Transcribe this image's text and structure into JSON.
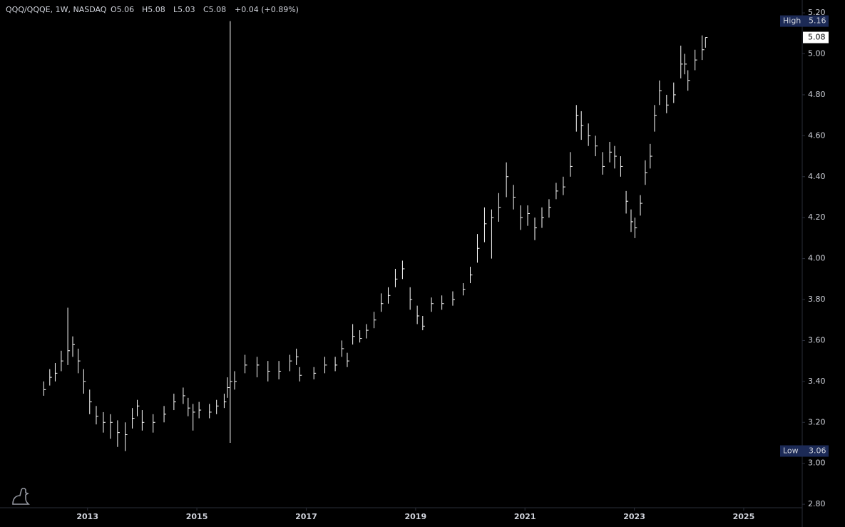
{
  "chart_data": {
    "type": "ohlc",
    "title": "QQQ/QQQE, 1W, NASDAQ",
    "legend": [
      "O5.06",
      "H5.08",
      "L5.03",
      "C5.08",
      "+0.04 (+0.89%)"
    ],
    "color": "#ffffff",
    "xlim": [
      2011.4,
      2026.07
    ],
    "xticks": [
      2013,
      2015,
      2017,
      2019,
      2021,
      2023,
      2025
    ],
    "ylim": [
      2.783,
      5.263
    ],
    "yticks": [
      {
        "value": 2.8,
        "label": "2.80"
      },
      {
        "value": 3.0,
        "label": "3.00"
      },
      {
        "value": 3.2,
        "label": "3.20"
      },
      {
        "value": 3.4,
        "label": "3.40"
      },
      {
        "value": 3.6,
        "label": "3.60"
      },
      {
        "value": 3.8,
        "label": "3.80"
      },
      {
        "value": 4.0,
        "label": "4.00"
      },
      {
        "value": 4.2,
        "label": "4.20"
      },
      {
        "value": 4.4,
        "label": "4.40"
      },
      {
        "value": 4.6,
        "label": "4.60"
      },
      {
        "value": 4.8,
        "label": "4.80"
      },
      {
        "value": 5.0,
        "label": "5.00"
      },
      {
        "value": 5.2,
        "label": "5.20"
      }
    ],
    "high_marker": {
      "label": "High",
      "value": 5.16
    },
    "low_marker": {
      "label": "Low",
      "value": 3.06
    },
    "last_price": 5.08,
    "x": [
      2012.2,
      2012.31,
      2012.41,
      2012.52,
      2012.64,
      2012.73,
      2012.83,
      2012.93,
      2013.04,
      2013.16,
      2013.29,
      2013.42,
      2013.55,
      2013.69,
      2013.82,
      2013.91,
      2014.0,
      2014.2,
      2014.4,
      2014.58,
      2014.75,
      2014.84,
      2014.93,
      2015.04,
      2015.23,
      2015.36,
      2015.5,
      2015.56,
      2015.61,
      2015.69,
      2015.88,
      2016.1,
      2016.3,
      2016.5,
      2016.7,
      2016.82,
      2016.88,
      2017.14,
      2017.34,
      2017.53,
      2017.65,
      2017.75,
      2017.85,
      2017.98,
      2018.1,
      2018.24,
      2018.37,
      2018.5,
      2018.63,
      2018.76,
      2018.9,
      2019.03,
      2019.13,
      2019.29,
      2019.48,
      2019.68,
      2019.87,
      2020.0,
      2020.13,
      2020.26,
      2020.39,
      2020.52,
      2020.66,
      2020.79,
      2020.92,
      2021.05,
      2021.18,
      2021.31,
      2021.44,
      2021.57,
      2021.7,
      2021.83,
      2021.94,
      2022.03,
      2022.16,
      2022.29,
      2022.42,
      2022.55,
      2022.64,
      2022.75,
      2022.85,
      2022.94,
      2023.01,
      2023.11,
      2023.2,
      2023.29,
      2023.37,
      2023.46,
      2023.59,
      2023.72,
      2023.85,
      2023.92,
      2023.98,
      2024.11,
      2024.24,
      2024.3
    ],
    "close": [
      3.36,
      3.42,
      3.44,
      3.5,
      3.55,
      3.58,
      3.5,
      3.4,
      3.3,
      3.23,
      3.2,
      3.2,
      3.15,
      3.14,
      3.22,
      3.28,
      3.2,
      3.2,
      3.24,
      3.3,
      3.33,
      3.27,
      3.25,
      3.26,
      3.25,
      3.28,
      3.3,
      3.37,
      3.4,
      3.4,
      3.48,
      3.48,
      3.45,
      3.45,
      3.5,
      3.52,
      3.43,
      3.44,
      3.48,
      3.48,
      3.56,
      3.5,
      3.62,
      3.61,
      3.65,
      3.7,
      3.78,
      3.82,
      3.9,
      3.95,
      3.8,
      3.72,
      3.67,
      3.78,
      3.78,
      3.8,
      3.85,
      3.92,
      4.05,
      4.17,
      4.2,
      4.25,
      4.4,
      4.3,
      4.2,
      4.22,
      4.15,
      4.2,
      4.25,
      4.33,
      4.35,
      4.45,
      4.7,
      4.65,
      4.6,
      4.55,
      4.45,
      4.52,
      4.5,
      4.45,
      4.28,
      4.18,
      4.15,
      4.27,
      4.42,
      4.5,
      4.7,
      4.82,
      4.75,
      4.8,
      4.95,
      4.95,
      4.87,
      4.97,
      5.02,
      5.08
    ],
    "low": [
      3.33,
      3.38,
      3.4,
      3.45,
      3.48,
      3.52,
      3.44,
      3.34,
      3.24,
      3.19,
      3.15,
      3.12,
      3.08,
      3.06,
      3.17,
      3.23,
      3.16,
      3.15,
      3.2,
      3.26,
      3.29,
      3.23,
      3.16,
      3.22,
      3.22,
      3.24,
      3.27,
      3.32,
      3.1,
      3.36,
      3.44,
      3.42,
      3.4,
      3.41,
      3.45,
      3.48,
      3.4,
      3.41,
      3.44,
      3.45,
      3.52,
      3.47,
      3.58,
      3.59,
      3.61,
      3.66,
      3.74,
      3.78,
      3.86,
      3.9,
      3.75,
      3.68,
      3.65,
      3.74,
      3.75,
      3.77,
      3.82,
      3.88,
      3.98,
      4.08,
      4.0,
      4.18,
      4.3,
      4.24,
      4.14,
      4.16,
      4.09,
      4.15,
      4.2,
      4.29,
      4.31,
      4.4,
      4.62,
      4.58,
      4.55,
      4.5,
      4.41,
      4.47,
      4.44,
      4.4,
      4.22,
      4.13,
      4.1,
      4.21,
      4.36,
      4.44,
      4.62,
      4.75,
      4.71,
      4.76,
      4.88,
      4.9,
      4.82,
      4.92,
      4.97,
      5.03
    ],
    "high": [
      3.4,
      3.46,
      3.49,
      3.55,
      3.76,
      3.62,
      3.56,
      3.46,
      3.36,
      3.28,
      3.25,
      3.24,
      3.21,
      3.2,
      3.27,
      3.31,
      3.26,
      3.24,
      3.28,
      3.34,
      3.37,
      3.32,
      3.29,
      3.3,
      3.29,
      3.31,
      3.34,
      3.42,
      5.16,
      3.45,
      3.53,
      3.52,
      3.5,
      3.5,
      3.53,
      3.56,
      3.47,
      3.47,
      3.52,
      3.52,
      3.6,
      3.54,
      3.68,
      3.65,
      3.68,
      3.74,
      3.83,
      3.86,
      3.95,
      3.99,
      3.86,
      3.77,
      3.72,
      3.81,
      3.82,
      3.84,
      3.88,
      3.96,
      4.12,
      4.25,
      4.24,
      4.32,
      4.47,
      4.36,
      4.26,
      4.26,
      4.2,
      4.25,
      4.29,
      4.37,
      4.4,
      4.52,
      4.75,
      4.72,
      4.66,
      4.6,
      4.52,
      4.57,
      4.55,
      4.5,
      4.33,
      4.24,
      4.2,
      4.31,
      4.48,
      4.56,
      4.75,
      4.87,
      4.8,
      4.86,
      5.04,
      5.0,
      4.92,
      5.02,
      5.09,
      5.08
    ]
  }
}
